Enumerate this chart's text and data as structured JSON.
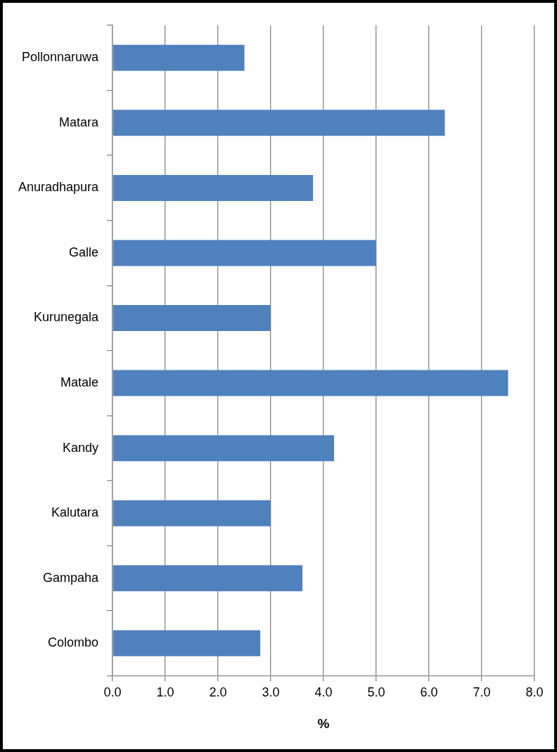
{
  "chart_data": {
    "type": "bar",
    "orientation": "horizontal",
    "xlabel": "%",
    "categories": [
      "Pollonnaruwa",
      "Matara",
      "Anuradhapura",
      "Galle",
      "Kurunegala",
      "Matale",
      "Kandy",
      "Kalutara",
      "Gampaha",
      "Colombo"
    ],
    "values": [
      2.5,
      6.3,
      3.8,
      5.0,
      3.0,
      7.5,
      4.2,
      3.0,
      3.6,
      2.8
    ],
    "color": "#4f81bd",
    "xlim": [
      0,
      8
    ],
    "xticks": [
      {
        "value": 0,
        "label": "0.0"
      },
      {
        "value": 1,
        "label": "1.0"
      },
      {
        "value": 2,
        "label": "2.0"
      },
      {
        "value": 3,
        "label": "3.0"
      },
      {
        "value": 4,
        "label": "4.0"
      },
      {
        "value": 5,
        "label": "5.0"
      },
      {
        "value": 6,
        "label": "6.0"
      },
      {
        "value": 7,
        "label": "7.0"
      },
      {
        "value": 8,
        "label": "8.0"
      }
    ],
    "grid": "x",
    "legend": false
  }
}
